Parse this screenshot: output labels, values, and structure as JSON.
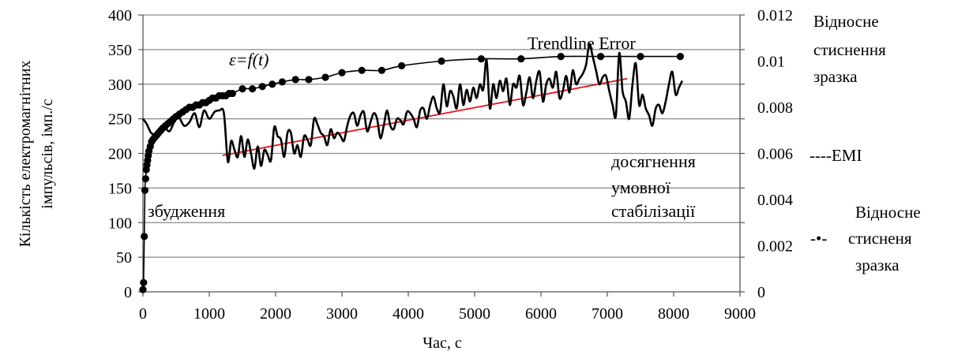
{
  "chart_data": {
    "type": "line",
    "xlabel": "Час, с",
    "ylabel_left_line1": "Кількість електромагнітних",
    "ylabel_left_line2": "імпульсів, імп./с",
    "xlim": [
      0,
      9000
    ],
    "xticks": [
      0,
      1000,
      2000,
      3000,
      4000,
      5000,
      6000,
      7000,
      8000,
      9000
    ],
    "ylim_left": [
      0,
      400
    ],
    "yticks_left": [
      0,
      50,
      100,
      150,
      200,
      250,
      300,
      350,
      400
    ],
    "ylim_right": [
      0,
      0.012
    ],
    "yticks_right": [
      "0",
      "0.002",
      "0.004",
      "0.006",
      "0.008",
      "0.01",
      "0.012"
    ],
    "grid": "horizontal",
    "colors": {
      "emi": "#000000",
      "strain": "#000000",
      "trend": "#e8141c",
      "grid": "#888888"
    },
    "annotations": {
      "formula": "ε=f(t)",
      "trend_label": "Trendline Error",
      "excitation": "збудження",
      "stab_line1": "досягнення",
      "stab_line2": "умовної",
      "stab_line3": "стабілізації"
    },
    "legend": {
      "title_line1": "Відносне",
      "title_line2": "стиснення",
      "title_line3": "зразка",
      "emi_label": "----EMI",
      "strain_marker": "-•-",
      "strain_line1": "Відносне",
      "strain_line2": "стисненя",
      "strain_line3": "зразка"
    },
    "series": [
      {
        "name": "EMI",
        "axis": "left",
        "style": "line",
        "x": [
          0,
          60,
          120,
          180,
          250,
          320,
          400,
          470,
          540,
          620,
          700,
          780,
          850,
          920,
          1000,
          1080,
          1150,
          1220,
          1280,
          1330,
          1380,
          1430,
          1480,
          1530,
          1580,
          1630,
          1680,
          1730,
          1780,
          1830,
          1880,
          1930,
          1980,
          2030,
          2080,
          2130,
          2180,
          2230,
          2280,
          2330,
          2380,
          2430,
          2480,
          2530,
          2580,
          2630,
          2680,
          2730,
          2780,
          2830,
          2880,
          2930,
          2980,
          3030,
          3080,
          3130,
          3180,
          3230,
          3280,
          3330,
          3380,
          3430,
          3480,
          3530,
          3580,
          3630,
          3680,
          3730,
          3780,
          3830,
          3880,
          3930,
          3980,
          4030,
          4080,
          4130,
          4180,
          4230,
          4280,
          4330,
          4380,
          4430,
          4480,
          4530,
          4580,
          4630,
          4680,
          4730,
          4780,
          4830,
          4880,
          4930,
          4980,
          5030,
          5080,
          5130,
          5180,
          5230,
          5280,
          5330,
          5380,
          5430,
          5480,
          5530,
          5580,
          5630,
          5680,
          5730,
          5780,
          5830,
          5880,
          5930,
          5980,
          6030,
          6080,
          6130,
          6180,
          6230,
          6280,
          6330,
          6380,
          6430,
          6480,
          6530,
          6580,
          6630,
          6680,
          6730,
          6780,
          6830,
          6880,
          6930,
          6980,
          7030,
          7080,
          7130,
          7180,
          7230,
          7280,
          7330,
          7380,
          7430,
          7480,
          7530,
          7580,
          7630,
          7680,
          7730,
          7780,
          7830,
          7880,
          7930,
          7980,
          8030,
          8080,
          8130
        ],
        "y": [
          250,
          242,
          230,
          228,
          235,
          238,
          232,
          245,
          252,
          240,
          245,
          258,
          238,
          262,
          250,
          260,
          262,
          258,
          188,
          218,
          205,
          195,
          225,
          195,
          220,
          200,
          178,
          210,
          182,
          205,
          198,
          190,
          238,
          225,
          220,
          195,
          230,
          230,
          200,
          212,
          195,
          225,
          220,
          212,
          250,
          242,
          230,
          225,
          212,
          235,
          222,
          230,
          225,
          218,
          240,
          255,
          258,
          240,
          255,
          260,
          232,
          245,
          258,
          250,
          222,
          240,
          262,
          240,
          235,
          250,
          248,
          242,
          260,
          258,
          250,
          238,
          262,
          265,
          250,
          270,
          282,
          265,
          260,
          300,
          268,
          290,
          282,
          265,
          300,
          270,
          292,
          275,
          295,
          280,
          300,
          292,
          335,
          265,
          300,
          280,
          305,
          290,
          308,
          270,
          300,
          295,
          312,
          270,
          288,
          310,
          280,
          305,
          318,
          275,
          300,
          308,
          295,
          318,
          280,
          290,
          312,
          288,
          320,
          300,
          308,
          315,
          328,
          358,
          340,
          320,
          300,
          310,
          312,
          290,
          270,
          255,
          345,
          290,
          275,
          250,
          300,
          330,
          270,
          285,
          265,
          255,
          240,
          265,
          270,
          258,
          275,
          300,
          318,
          285,
          295,
          305
        ]
      },
      {
        "name": "Відносне стисненя зразка",
        "axis": "right",
        "style": "line+markers",
        "x": [
          0,
          10,
          20,
          30,
          40,
          50,
          60,
          70,
          80,
          90,
          110,
          130,
          150,
          180,
          210,
          240,
          270,
          300,
          340,
          380,
          420,
          460,
          500,
          550,
          600,
          650,
          700,
          750,
          800,
          850,
          900,
          950,
          1000,
          1050,
          1100,
          1150,
          1200,
          1250,
          1300,
          1350,
          1500,
          1650,
          1800,
          1950,
          2100,
          2300,
          2500,
          2750,
          3000,
          3300,
          3600,
          3900,
          4500,
          5100,
          5700,
          6300,
          6900,
          7500,
          8100
        ],
        "y": [
          0.0001,
          0.0004,
          0.0024,
          0.0044,
          0.0049,
          0.0053,
          0.0055,
          0.0057,
          0.0059,
          0.0061,
          0.0063,
          0.0065,
          0.0066,
          0.0067,
          0.0068,
          0.0069,
          0.007,
          0.0071,
          0.0072,
          0.0073,
          0.0074,
          0.0075,
          0.0076,
          0.0077,
          0.0078,
          0.0079,
          0.008,
          0.008,
          0.0081,
          0.0081,
          0.0082,
          0.0082,
          0.0083,
          0.0084,
          0.0084,
          0.0085,
          0.0085,
          0.0085,
          0.0086,
          0.0086,
          0.0088,
          0.0088,
          0.0089,
          0.009,
          0.0091,
          0.0092,
          0.0092,
          0.0093,
          0.0095,
          0.0096,
          0.0096,
          0.0098,
          0.01,
          0.0101,
          0.0101,
          0.0102,
          0.0102,
          0.0102,
          0.0102
        ]
      },
      {
        "name": "Trendline Error",
        "axis": "left",
        "style": "line",
        "x": [
          1200,
          7300
        ],
        "y": [
          197,
          308
        ]
      }
    ]
  }
}
